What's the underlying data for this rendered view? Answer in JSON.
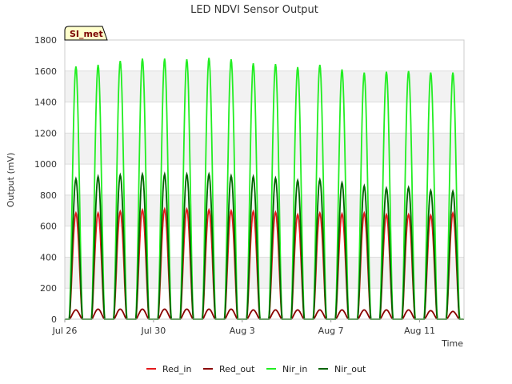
{
  "chart_data": {
    "type": "line",
    "title": "LED NDVI Sensor Output",
    "xlabel": "Time",
    "ylabel": "Output (mV)",
    "site_label": "SI_met",
    "ylim": [
      0,
      1800
    ],
    "yticks": [
      0,
      200,
      400,
      600,
      800,
      1000,
      1200,
      1400,
      1600,
      1800
    ],
    "xlim": [
      "2023-07-26",
      "2023-08-13"
    ],
    "xticks": [
      {
        "date": "2023-07-26",
        "label": "Jul 26"
      },
      {
        "date": "2023-07-30",
        "label": "Jul 30"
      },
      {
        "date": "2023-08-03",
        "label": "Aug 3"
      },
      {
        "date": "2023-08-07",
        "label": "Aug 7"
      },
      {
        "date": "2023-08-11",
        "label": "Aug 11"
      }
    ],
    "grid": true,
    "alternating_bands": true,
    "legend_position": "bottom",
    "days": [
      "2023-07-26",
      "2023-07-27",
      "2023-07-28",
      "2023-07-29",
      "2023-07-30",
      "2023-07-31",
      "2023-08-01",
      "2023-08-02",
      "2023-08-03",
      "2023-08-04",
      "2023-08-05",
      "2023-08-06",
      "2023-08-07",
      "2023-08-08",
      "2023-08-09",
      "2023-08-10",
      "2023-08-11",
      "2023-08-12"
    ],
    "series": [
      {
        "name": "Red_in",
        "color": "#e41a1c",
        "daily_peak": [
          685,
          685,
          695,
          705,
          710,
          710,
          705,
          700,
          695,
          690,
          675,
          685,
          680,
          685,
          675,
          675,
          670,
          685
        ]
      },
      {
        "name": "Red_out",
        "color": "#8b0000",
        "daily_peak": [
          60,
          65,
          65,
          65,
          65,
          65,
          65,
          65,
          60,
          60,
          60,
          60,
          60,
          60,
          60,
          60,
          55,
          50
        ]
      },
      {
        "name": "Nir_in",
        "color": "#22ee22",
        "daily_peak": [
          1630,
          1640,
          1665,
          1680,
          1680,
          1675,
          1685,
          1675,
          1650,
          1645,
          1625,
          1640,
          1610,
          1590,
          1595,
          1600,
          1590,
          1590
        ]
      },
      {
        "name": "Nir_out",
        "color": "#006400",
        "daily_peak": [
          905,
          920,
          930,
          935,
          935,
          935,
          935,
          925,
          920,
          910,
          895,
          900,
          880,
          860,
          845,
          850,
          830,
          825
        ]
      }
    ]
  }
}
